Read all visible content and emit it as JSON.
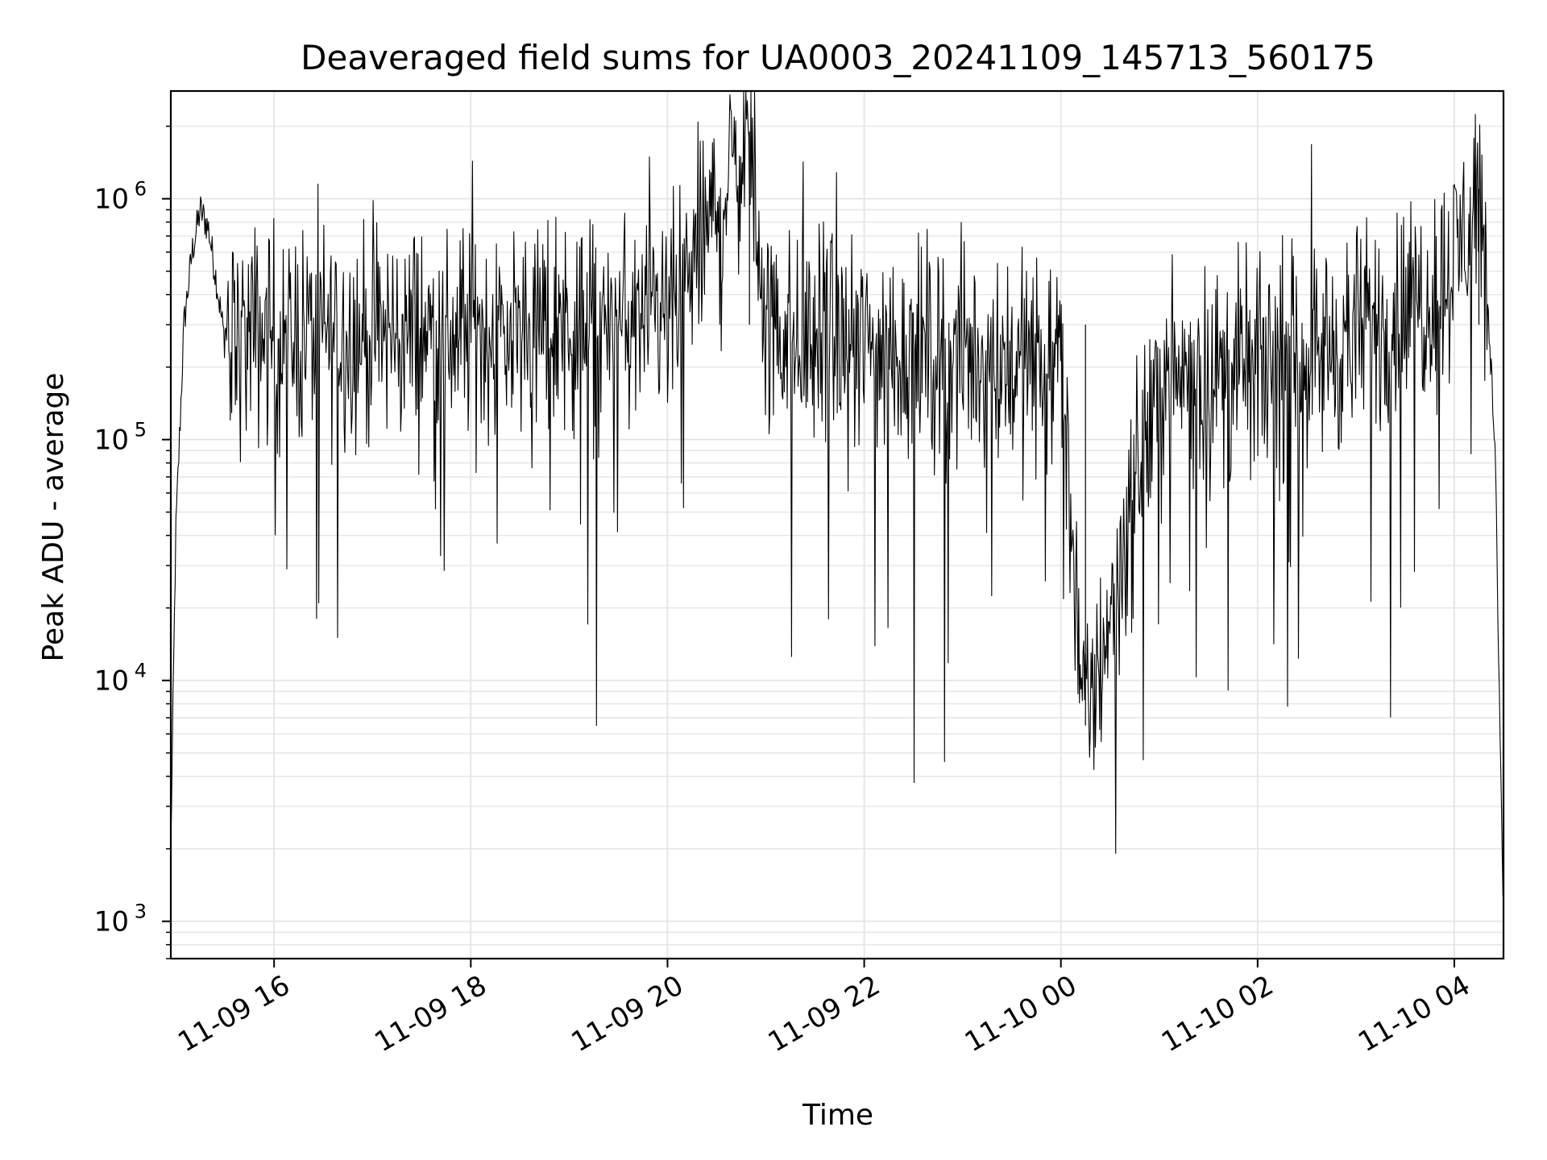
{
  "chart_data": {
    "type": "line",
    "title": "Deaveraged field sums for UA0003_20241109_145713_560175",
    "xlabel": "Time",
    "ylabel": "Peak ADU - average",
    "x_scale": "time",
    "y_scale": "log",
    "xlim": [
      "2024-11-09T14:57",
      "2024-11-10T04:30"
    ],
    "ylim": [
      700,
      2800000
    ],
    "grid": true,
    "line_color": "#000000",
    "x_ticks": [
      {
        "value": "2024-11-09T16:00",
        "label": "11-09 16"
      },
      {
        "value": "2024-11-09T18:00",
        "label": "11-09 18"
      },
      {
        "value": "2024-11-09T20:00",
        "label": "11-09 20"
      },
      {
        "value": "2024-11-09T22:00",
        "label": "11-09 22"
      },
      {
        "value": "2024-11-10T00:00",
        "label": "11-10 00"
      },
      {
        "value": "2024-11-10T02:00",
        "label": "11-10 02"
      },
      {
        "value": "2024-11-10T04:00",
        "label": "11-10 04"
      }
    ],
    "y_ticks": [
      {
        "value": 1000,
        "base": "10",
        "exp": "3"
      },
      {
        "value": 10000,
        "base": "10",
        "exp": "4"
      },
      {
        "value": 100000,
        "base": "10",
        "exp": "5"
      },
      {
        "value": 1000000,
        "base": "10",
        "exp": "6"
      }
    ],
    "series": [
      {
        "description": "dense noisy trace; representative sample points (time, value)",
        "points": [
          [
            "2024-11-09T14:57",
            2000
          ],
          [
            "2024-11-09T15:00",
            40000
          ],
          [
            "2024-11-09T15:05",
            300000
          ],
          [
            "2024-11-09T15:10",
            600000
          ],
          [
            "2024-11-09T15:15",
            900000
          ],
          [
            "2024-11-09T15:20",
            750000
          ],
          [
            "2024-11-09T15:25",
            450000
          ],
          [
            "2024-11-09T15:30",
            250000
          ],
          [
            "2024-11-09T16:00",
            280000
          ],
          [
            "2024-11-09T17:00",
            270000
          ],
          [
            "2024-11-09T18:00",
            280000
          ],
          [
            "2024-11-09T19:00",
            290000
          ],
          [
            "2024-11-09T20:00",
            300000
          ],
          [
            "2024-11-09T20:50",
            1900000
          ],
          [
            "2024-11-09T21:00",
            280000
          ],
          [
            "2024-11-09T22:00",
            240000
          ],
          [
            "2024-11-09T23:00",
            220000
          ],
          [
            "2024-11-10T00:00",
            200000
          ],
          [
            "2024-11-10T00:15",
            6500
          ],
          [
            "2024-11-10T01:00",
            180000
          ],
          [
            "2024-11-10T02:00",
            190000
          ],
          [
            "2024-11-10T03:00",
            260000
          ],
          [
            "2024-11-10T03:45",
            400000
          ],
          [
            "2024-11-10T04:00",
            550000
          ],
          [
            "2024-11-10T04:15",
            1100000
          ],
          [
            "2024-11-10T04:20",
            450000
          ],
          [
            "2024-11-10T04:25",
            80000
          ],
          [
            "2024-11-10T04:30",
            1000
          ]
        ]
      }
    ]
  }
}
